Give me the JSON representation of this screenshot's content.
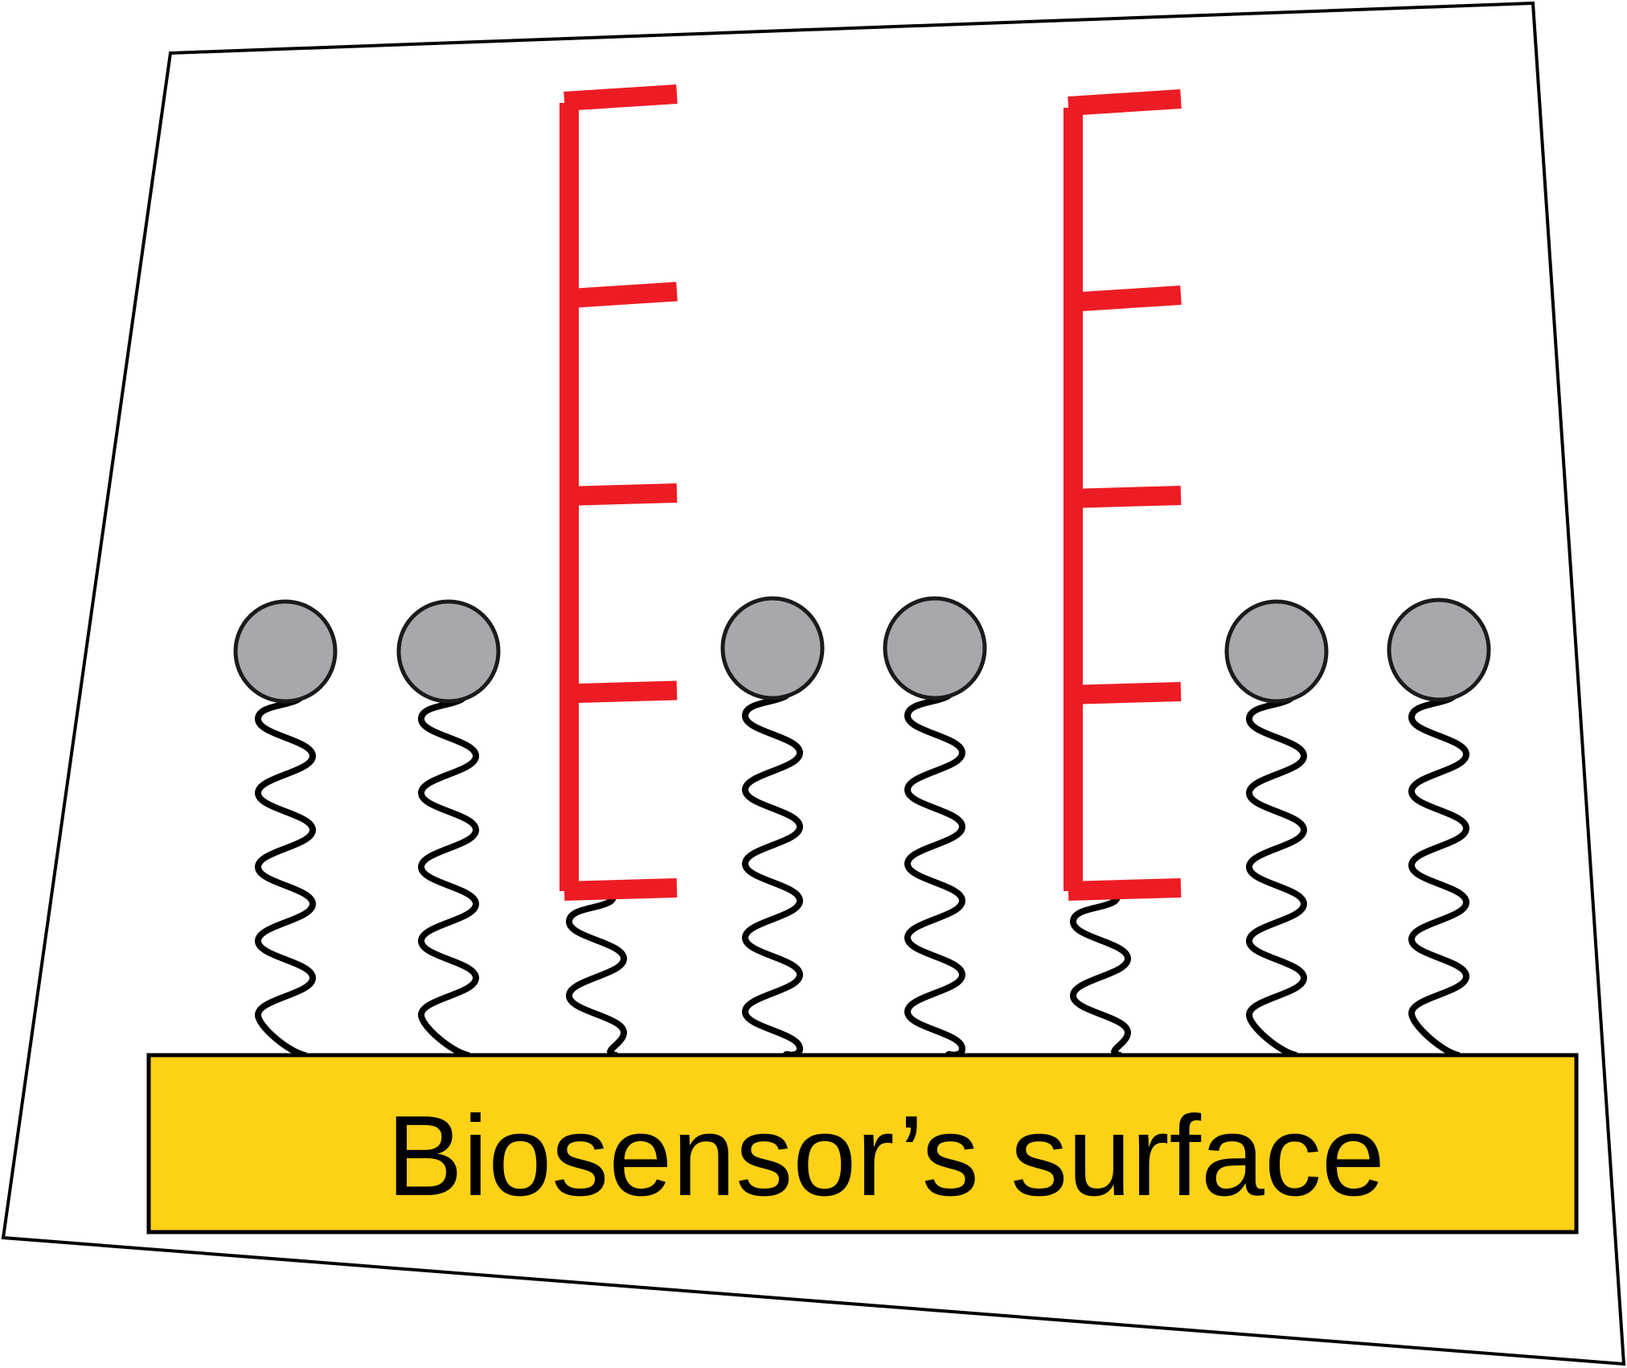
{
  "diagram": {
    "surface_label": "Biosensor’s surface",
    "colors": {
      "background": "#ffffff",
      "frame_stroke": "#000000",
      "surface_fill": "#fcd116",
      "surface_stroke": "#000000",
      "bead_fill": "#a7a8ab",
      "bead_stroke": "#1a1a1a",
      "linker_stroke": "#000000",
      "probe_color": "#ed1c24"
    },
    "molecules": [
      {
        "kind": "bead"
      },
      {
        "kind": "bead"
      },
      {
        "kind": "probe"
      },
      {
        "kind": "bead"
      },
      {
        "kind": "bead"
      },
      {
        "kind": "probe"
      },
      {
        "kind": "bead"
      },
      {
        "kind": "bead"
      }
    ]
  }
}
